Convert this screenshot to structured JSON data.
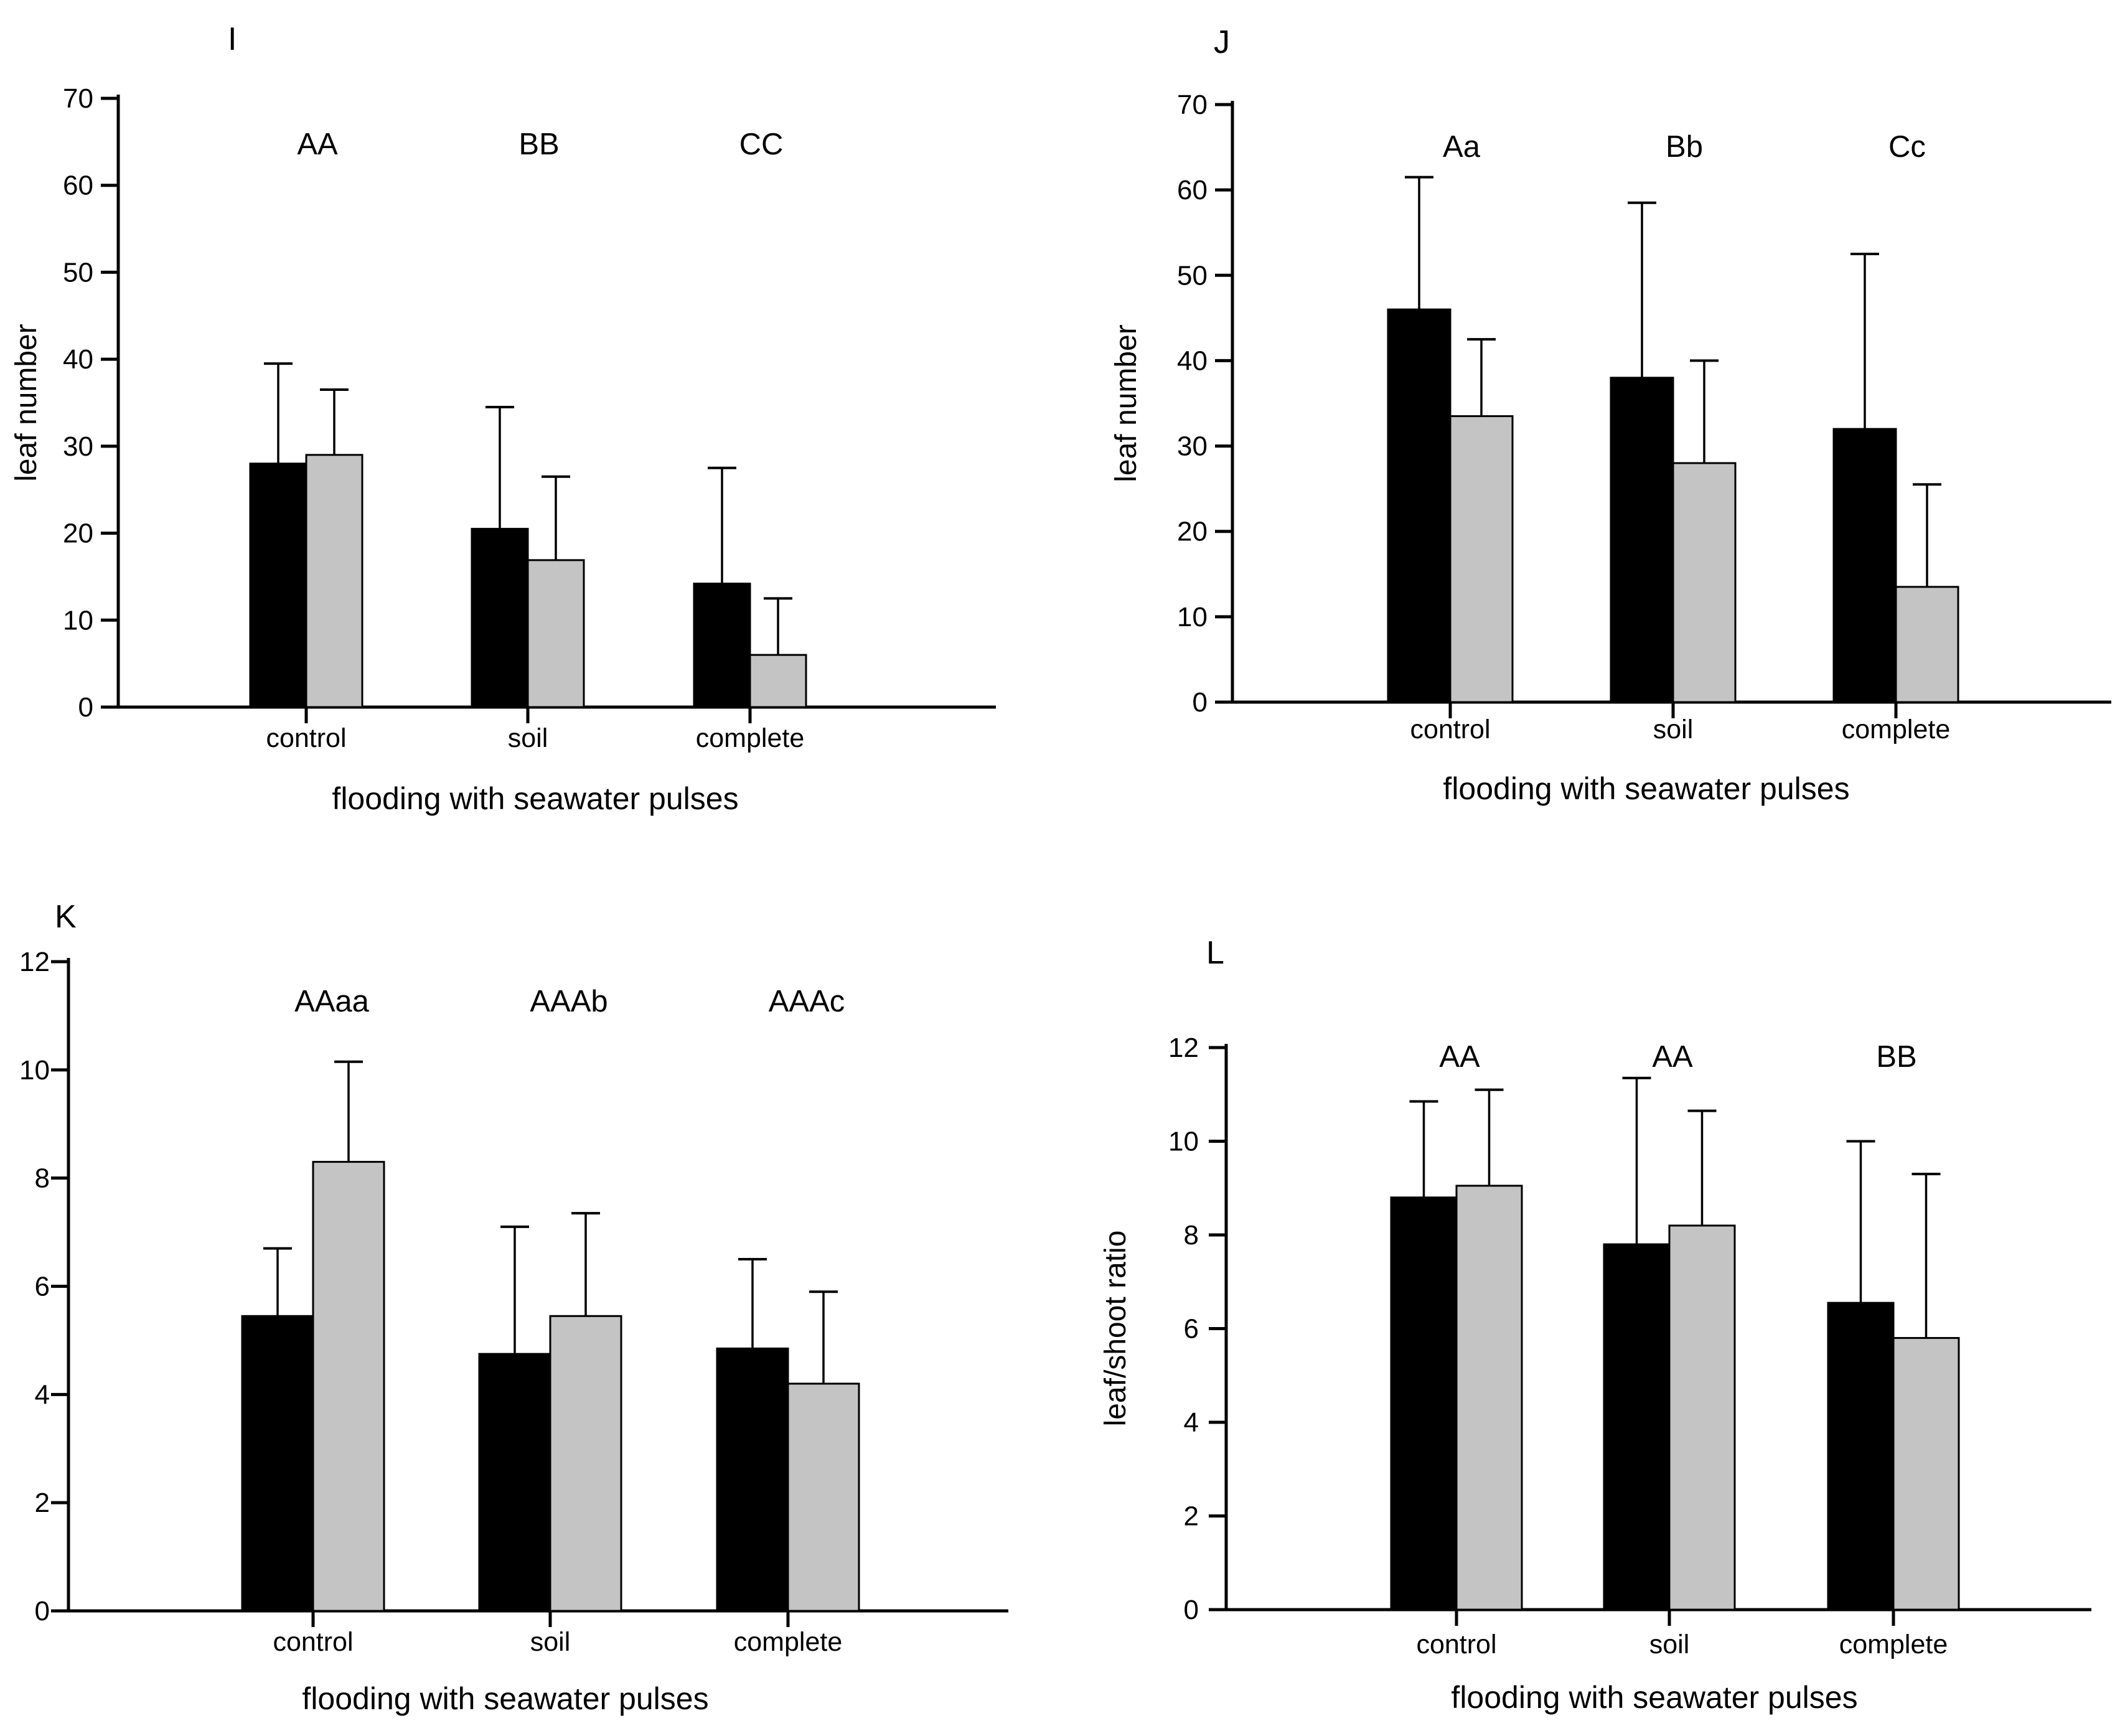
{
  "figure": {
    "background": "#ffffff",
    "bar_outline_color": "#000000",
    "error_bar_color": "#000000"
  },
  "chart_data": [
    {
      "panel_letter": "I",
      "type": "bar",
      "title": "",
      "xlabel": "flooding with seawater pulses",
      "ylabel": "leaf number",
      "ylim": [
        0,
        70
      ],
      "yticks": [
        0,
        10,
        20,
        30,
        40,
        50,
        60,
        70
      ],
      "categories": [
        "control",
        "soil",
        "complete"
      ],
      "sig_labels": [
        "AA",
        "BB",
        "CC"
      ],
      "grid": false,
      "legend_position": "none",
      "series": [
        {
          "name": "black",
          "color": "#000000",
          "values": [
            28,
            20.5,
            14.2
          ],
          "error_top": [
            39.5,
            34.5,
            27.5
          ]
        },
        {
          "name": "grey",
          "color": "#c4c4c4",
          "values": [
            29,
            16.9,
            6
          ],
          "error_top": [
            36.5,
            26.5,
            12.5
          ]
        }
      ]
    },
    {
      "panel_letter": "J",
      "type": "bar",
      "title": "",
      "xlabel": "flooding with seawater pulses",
      "ylabel": "leaf number",
      "ylim": [
        0,
        70
      ],
      "yticks": [
        0,
        10,
        20,
        30,
        40,
        50,
        60,
        70
      ],
      "categories": [
        "control",
        "soil",
        "complete"
      ],
      "sig_labels": [
        "Aa",
        "Bb",
        "Cc"
      ],
      "grid": false,
      "legend_position": "none",
      "series": [
        {
          "name": "black",
          "color": "#000000",
          "values": [
            46,
            38,
            32
          ],
          "error_top": [
            61.5,
            58.5,
            52.5
          ]
        },
        {
          "name": "grey",
          "color": "#c4c4c4",
          "values": [
            33.5,
            28,
            13.5
          ],
          "error_top": [
            42.5,
            40,
            25.5
          ]
        }
      ]
    },
    {
      "panel_letter": "K",
      "type": "bar",
      "title": "",
      "xlabel": "flooding with seawater pulses",
      "ylabel": "",
      "ylim": [
        0,
        12
      ],
      "yticks": [
        0,
        2,
        4,
        6,
        8,
        10,
        12
      ],
      "categories": [
        "control",
        "soil",
        "complete"
      ],
      "sig_labels": [
        "AAaa",
        "AAAb",
        "AAAc"
      ],
      "grid": false,
      "legend_position": "none",
      "series": [
        {
          "name": "black",
          "color": "#000000",
          "values": [
            5.45,
            4.75,
            4.85
          ],
          "error_top": [
            6.7,
            7.1,
            6.5
          ]
        },
        {
          "name": "grey",
          "color": "#c4c4c4",
          "values": [
            8.3,
            5.45,
            4.2
          ],
          "error_top": [
            10.15,
            7.35,
            5.9
          ]
        }
      ]
    },
    {
      "panel_letter": "L",
      "type": "bar",
      "title": "",
      "xlabel": "flooding with seawater pulses",
      "ylabel": "leaf/shoot ratio",
      "ylim": [
        0,
        12
      ],
      "yticks": [
        0,
        2,
        4,
        6,
        8,
        10,
        12
      ],
      "categories": [
        "control",
        "soil",
        "complete"
      ],
      "sig_labels": [
        "AA",
        "AA",
        "BB"
      ],
      "grid": false,
      "legend_position": "none",
      "series": [
        {
          "name": "black",
          "color": "#000000",
          "values": [
            8.8,
            7.8,
            6.55
          ],
          "error_top": [
            10.85,
            11.35,
            10.0
          ]
        },
        {
          "name": "grey",
          "color": "#c4c4c4",
          "values": [
            9.05,
            8.2,
            5.8
          ],
          "error_top": [
            11.1,
            10.65,
            9.3
          ]
        }
      ]
    }
  ]
}
